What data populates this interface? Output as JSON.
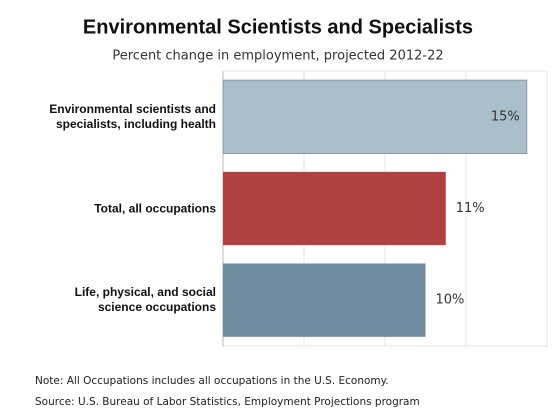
{
  "chart_data": {
    "type": "barh",
    "title": "Environmental Scientists and Specialists",
    "subtitle": "Percent change in employment, projected 2012-22",
    "categories": [
      "Environmental scientists and\nspecialists, including health",
      "Total, all occupations",
      "Life, physical, and social\nscience occupations"
    ],
    "values": [
      15,
      11,
      10
    ],
    "value_labels": [
      "15%",
      "11%",
      "10%"
    ],
    "colors": [
      "#aabfcc",
      "#b04141",
      "#6e8ba0"
    ],
    "xlim": [
      0,
      16
    ],
    "xticks": [
      0,
      4,
      8,
      12,
      16
    ],
    "grid": true,
    "notes": [
      "Note: All Occupations includes all occupations in the U.S. Economy.",
      "Source: U.S. Bureau of Labor Statistics, Employment Projections program"
    ]
  }
}
